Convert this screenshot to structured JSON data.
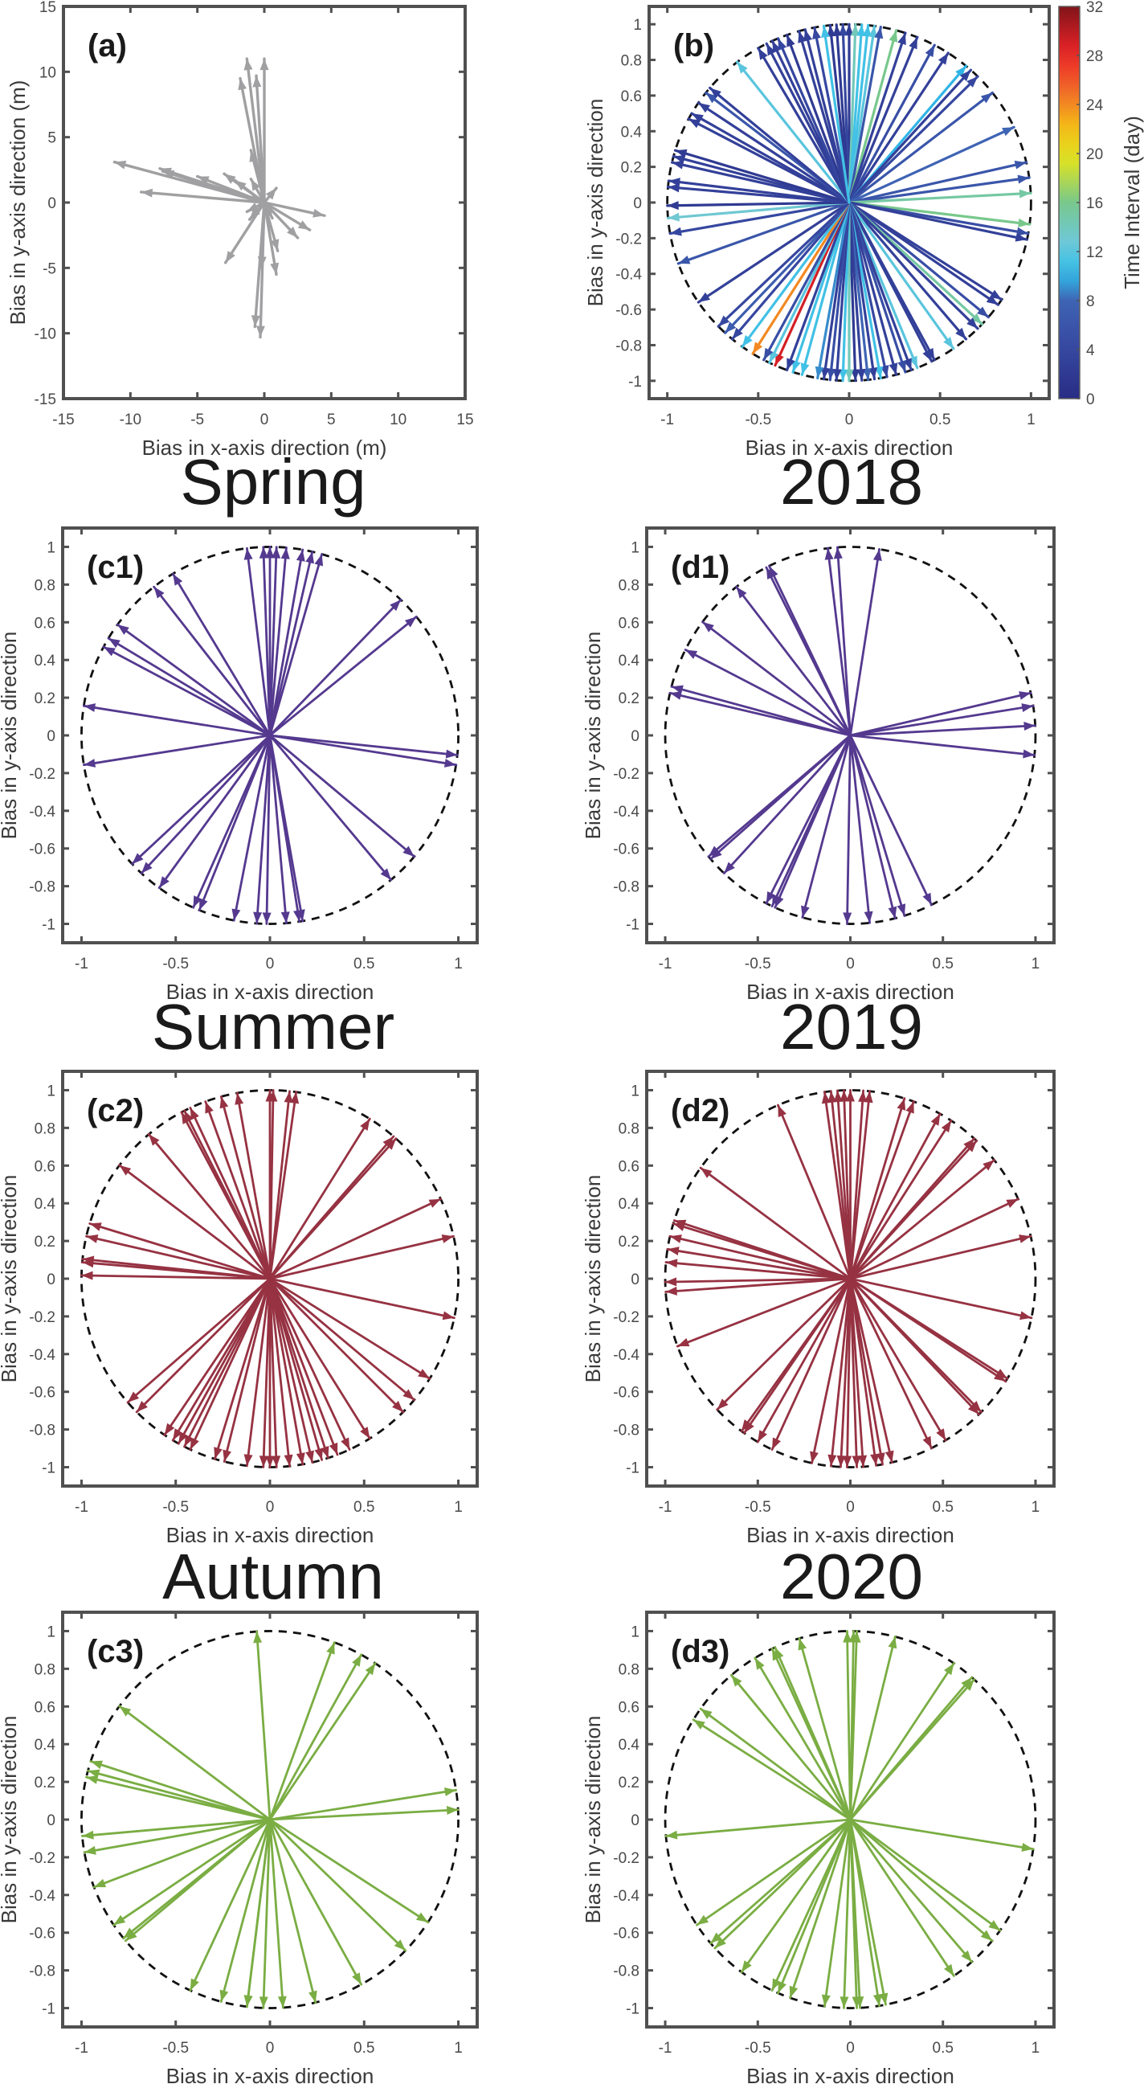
{
  "colorbar": {
    "label": "Time Interval (day)",
    "ticks": [
      "0",
      "4",
      "8",
      "12",
      "16",
      "20",
      "24",
      "28",
      "32"
    ],
    "min": 0,
    "max": 32
  },
  "row_titles": {
    "left": [
      "Spring",
      "Summer",
      "Autumn"
    ],
    "right": [
      "2018",
      "2019",
      "2020"
    ]
  },
  "chart_data": [
    {
      "id": "a",
      "tag": "(a)",
      "type": "quiver",
      "xlabel": "Bias in x-axis direction (m)",
      "ylabel": "Bias in y-axis direction (m)",
      "xlim": [
        -15,
        15
      ],
      "ylim": [
        -15,
        15
      ],
      "xticks": [
        -15,
        -10,
        -5,
        0,
        5,
        10,
        15
      ],
      "yticks": [
        -15,
        -10,
        -5,
        0,
        5,
        10,
        15
      ],
      "color": "#a0a0a2",
      "vectors": [
        [
          0,
          11
        ],
        [
          -1.3,
          11
        ],
        [
          -0.6,
          9.7
        ],
        [
          -1.8,
          9.5
        ],
        [
          -1,
          4
        ],
        [
          -11.2,
          3.1
        ],
        [
          -7.8,
          2.6
        ],
        [
          -7.6,
          2.4
        ],
        [
          -5,
          2
        ],
        [
          -3,
          2.2
        ],
        [
          -9.2,
          0.8
        ],
        [
          -2.2,
          1.7
        ],
        [
          -1,
          1.8
        ],
        [
          0.9,
          1.1
        ],
        [
          4.5,
          -1
        ],
        [
          3.4,
          -2.1
        ],
        [
          2.5,
          -2.7
        ],
        [
          1,
          -3.7
        ],
        [
          0.9,
          -5.5
        ],
        [
          -2.9,
          -4.6
        ],
        [
          -0.7,
          -9.5
        ],
        [
          -0.3,
          -10.3
        ],
        [
          -0.2,
          -5
        ],
        [
          -1.1,
          -1.3
        ],
        [
          0.6,
          -1.2
        ],
        [
          -1.3,
          -0.7
        ],
        [
          -0.9,
          0.4
        ]
      ]
    },
    {
      "id": "b",
      "tag": "(b)",
      "type": "quiver_colormap",
      "xlabel": "Bias in x-axis direction",
      "ylabel": "Bias in y-axis direction",
      "xlim": [
        -1.1,
        1.1
      ],
      "ylim": [
        -1.1,
        1.1
      ],
      "xticks": [
        -1,
        -0.5,
        0,
        0.5,
        1
      ],
      "yticks": [
        -1,
        -0.8,
        -0.6,
        -0.4,
        -0.2,
        0,
        0.2,
        0.4,
        0.6,
        0.8,
        1
      ],
      "unit_circle": true,
      "vectors_angle_deg_days": [
        [
          90,
          2
        ],
        [
          92,
          4
        ],
        [
          94,
          2
        ],
        [
          96,
          2
        ],
        [
          88,
          14
        ],
        [
          86,
          11
        ],
        [
          84,
          11
        ],
        [
          82,
          12
        ],
        [
          80,
          6
        ],
        [
          75,
          16
        ],
        [
          72,
          3
        ],
        [
          68,
          3
        ],
        [
          62,
          5
        ],
        [
          57,
          3
        ],
        [
          50,
          10
        ],
        [
          48,
          3
        ],
        [
          45,
          4
        ],
        [
          38,
          6
        ],
        [
          25,
          8
        ],
        [
          13,
          6
        ],
        [
          8,
          6
        ],
        [
          3,
          15
        ],
        [
          -7,
          16
        ],
        [
          -10,
          5
        ],
        [
          -12,
          3
        ],
        [
          -33,
          3
        ],
        [
          -35,
          3
        ],
        [
          -40,
          5
        ],
        [
          -43,
          15
        ],
        [
          -45,
          3
        ],
        [
          -50,
          3
        ],
        [
          -55,
          12
        ],
        [
          -62,
          3
        ],
        [
          -63,
          3
        ],
        [
          -68,
          12
        ],
        [
          -70,
          3
        ],
        [
          -72,
          5
        ],
        [
          -75,
          3
        ],
        [
          -78,
          4
        ],
        [
          -80,
          11
        ],
        [
          -82,
          3
        ],
        [
          -84,
          8
        ],
        [
          -86,
          3
        ],
        [
          -88,
          2
        ],
        [
          -90,
          14
        ],
        [
          -92,
          11
        ],
        [
          -94,
          3
        ],
        [
          -96,
          5
        ],
        [
          -98,
          3
        ],
        [
          -100,
          9
        ],
        [
          -105,
          11
        ],
        [
          -108,
          11
        ],
        [
          -110,
          3
        ],
        [
          -114,
          29
        ],
        [
          -116,
          12
        ],
        [
          -118,
          5
        ],
        [
          -122,
          24
        ],
        [
          -126,
          11
        ],
        [
          -130,
          4
        ],
        [
          -133,
          7
        ],
        [
          -136,
          4
        ],
        [
          -146,
          3
        ],
        [
          -160,
          6
        ],
        [
          -170,
          4
        ],
        [
          -175,
          13
        ],
        [
          -179,
          2
        ],
        [
          175,
          3
        ],
        [
          173,
          3
        ],
        [
          167,
          3
        ],
        [
          165,
          3
        ],
        [
          163,
          2
        ],
        [
          152,
          3
        ],
        [
          150,
          3
        ],
        [
          146,
          3
        ],
        [
          142,
          6
        ],
        [
          140,
          3
        ],
        [
          128,
          12
        ],
        [
          120,
          3
        ],
        [
          117,
          3
        ],
        [
          115,
          3
        ],
        [
          113,
          4
        ],
        [
          110,
          2
        ],
        [
          106,
          3
        ],
        [
          104,
          3
        ],
        [
          101,
          4
        ],
        [
          98,
          11
        ]
      ]
    },
    {
      "id": "c1",
      "tag": "(c1)",
      "type": "quiver",
      "color": "#54398f",
      "xlabel": "Bias in x-axis direction",
      "ylabel": "Bias in y-axis direction",
      "xlim": [
        -1.1,
        1.1
      ],
      "ylim": [
        -1.1,
        1.1
      ],
      "xticks": [
        -1,
        -0.5,
        0,
        0.5,
        1
      ],
      "yticks": [
        -1,
        -0.8,
        -0.6,
        -0.4,
        -0.2,
        0,
        0.2,
        0.4,
        0.6,
        0.8,
        1
      ],
      "unit_circle": true,
      "angles_deg": [
        97,
        92,
        90,
        88,
        85,
        80,
        77,
        74,
        121,
        128,
        144,
        149,
        152,
        171,
        46,
        39,
        -6,
        -9,
        -171,
        -137,
        -133,
        -126,
        -114,
        -112,
        -101,
        -94,
        -91,
        -85,
        -81,
        -80,
        -50,
        -40
      ]
    },
    {
      "id": "d1",
      "tag": "(d1)",
      "type": "quiver",
      "color": "#54398f",
      "xlabel": "Bias in x-axis direction",
      "ylabel": "Bias in y-axis direction",
      "xlim": [
        -1.1,
        1.1
      ],
      "ylim": [
        -1.1,
        1.1
      ],
      "xticks": [
        -1,
        -0.5,
        0,
        0.5,
        1
      ],
      "yticks": [
        -1,
        -0.8,
        -0.6,
        -0.4,
        -0.2,
        0,
        0.2,
        0.4,
        0.6,
        0.8,
        1
      ],
      "unit_circle": true,
      "angles_deg": [
        97,
        94,
        81,
        117,
        116,
        128,
        143,
        153,
        165,
        167,
        13,
        9,
        3,
        -6,
        -140,
        -139,
        -133,
        -117,
        -115,
        -114,
        -105,
        -91,
        -84,
        -76,
        -73,
        -64
      ]
    },
    {
      "id": "c2",
      "tag": "(c2)",
      "type": "quiver",
      "color": "#963242",
      "xlabel": "Bias in x-axis direction",
      "ylabel": "Bias in y-axis direction",
      "xlim": [
        -1.1,
        1.1
      ],
      "ylim": [
        -1.1,
        1.1
      ],
      "xticks": [
        -1,
        -0.5,
        0,
        0.5,
        1
      ],
      "yticks": [
        -1,
        -0.8,
        -0.6,
        -0.4,
        -0.2,
        0,
        0.2,
        0.4,
        0.6,
        0.8,
        1
      ],
      "unit_circle": true,
      "angles_deg": [
        118,
        117,
        115,
        110,
        105,
        100,
        90,
        89,
        84,
        82,
        130,
        143,
        163,
        167,
        175,
        174,
        179,
        58,
        49,
        48,
        25,
        13,
        -12,
        -32,
        -40,
        -45,
        -58,
        -65,
        -69,
        -72,
        -74,
        -77,
        -80,
        -84,
        -88,
        -90,
        -92,
        -97,
        -104,
        -107,
        -115,
        -117,
        -119,
        -121,
        -124,
        -139,
        -135
      ]
    },
    {
      "id": "d2",
      "tag": "(d2)",
      "type": "quiver",
      "color": "#963242",
      "xlabel": "Bias in x-axis direction",
      "ylabel": "Bias in y-axis direction",
      "xlim": [
        -1.1,
        1.1
      ],
      "ylim": [
        -1.1,
        1.1
      ],
      "xticks": [
        -1,
        -0.5,
        0,
        0.5,
        1
      ],
      "yticks": [
        -1,
        -0.8,
        -0.6,
        -0.4,
        -0.2,
        0,
        0.2,
        0.4,
        0.6,
        0.8,
        1
      ],
      "unit_circle": true,
      "angles_deg": [
        113,
        98,
        96,
        94,
        92,
        90,
        86,
        84,
        73,
        70,
        61,
        57,
        48,
        47,
        39,
        25,
        13,
        -12,
        -32,
        -33,
        -45,
        -46,
        -59,
        -64,
        -77,
        -80,
        -82,
        -86,
        -88,
        -91,
        -93,
        -96,
        -102,
        -115,
        -120,
        -125,
        -126,
        -136,
        -159,
        -179,
        -176,
        175,
        171,
        167,
        163,
        162,
        144
      ]
    },
    {
      "id": "c3",
      "tag": "(c3)",
      "type": "quiver",
      "color": "#7aad43",
      "xlabel": "Bias in x-axis direction",
      "ylabel": "Bias in y-axis direction",
      "xlim": [
        -1.1,
        1.1
      ],
      "ylim": [
        -1.1,
        1.1
      ],
      "xticks": [
        -1,
        -0.5,
        0,
        0.5,
        1
      ],
      "yticks": [
        -1,
        -0.8,
        -0.6,
        -0.4,
        -0.2,
        0,
        0.2,
        0.4,
        0.6,
        0.8,
        1
      ],
      "unit_circle": true,
      "angles_deg": [
        94,
        70,
        61,
        56,
        143,
        162,
        165,
        167,
        9,
        3,
        -33,
        -44,
        -61,
        -76,
        -86,
        -92,
        -97,
        -97,
        -105,
        -115,
        -140,
        -141,
        -146,
        -159,
        -170,
        -175
      ]
    },
    {
      "id": "d3",
      "tag": "(d3)",
      "type": "quiver",
      "color": "#7aad43",
      "xlabel": "Bias in x-axis direction",
      "ylabel": "Bias in y-axis direction",
      "xlim": [
        -1.1,
        1.1
      ],
      "ylim": [
        -1.1,
        1.1
      ],
      "xticks": [
        -1,
        -0.5,
        0,
        0.5,
        1
      ],
      "yticks": [
        -1,
        -0.8,
        -0.6,
        -0.4,
        -0.2,
        0,
        0.2,
        0.4,
        0.6,
        0.8,
        1
      ],
      "unit_circle": true,
      "angles_deg": [
        91,
        89,
        88,
        76,
        106,
        114,
        115,
        121,
        130,
        144,
        148,
        56,
        49,
        48,
        -9,
        -36,
        -40,
        -49,
        -56,
        -79,
        -81,
        -87,
        -88,
        -92,
        -98,
        -109,
        -113,
        -115,
        -126,
        -137,
        -139,
        -146,
        -175
      ]
    }
  ]
}
